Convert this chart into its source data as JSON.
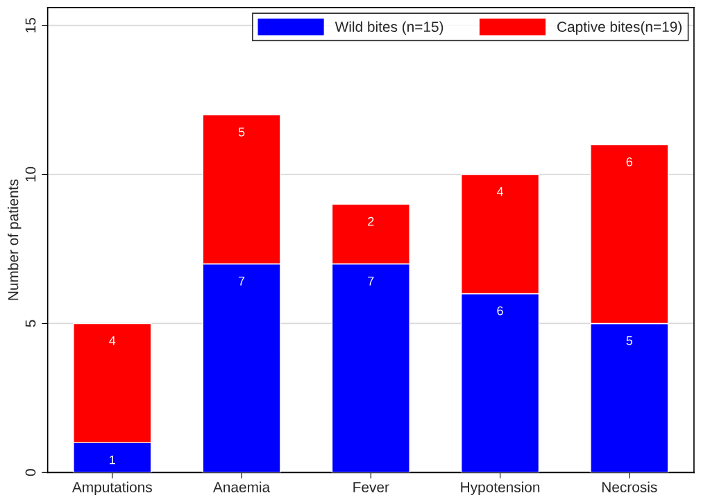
{
  "chart_data": {
    "type": "bar",
    "stacked": true,
    "ylabel": "Number of patients",
    "categories": [
      "Amputations",
      "Anaemia",
      "Fever",
      "Hypotension",
      "Necrosis"
    ],
    "series": [
      {
        "name": "Wild bites (n=15)",
        "color": "#0000ff",
        "values": [
          1,
          7,
          7,
          6,
          5
        ]
      },
      {
        "name": "Captive bites(n=19)",
        "color": "#ff0000",
        "values": [
          4,
          5,
          2,
          4,
          6
        ]
      }
    ],
    "ylim": [
      0,
      15.6
    ],
    "yticks": [
      0,
      5,
      10,
      15
    ],
    "grid": "y",
    "legend": "top right",
    "data_labels": true
  }
}
